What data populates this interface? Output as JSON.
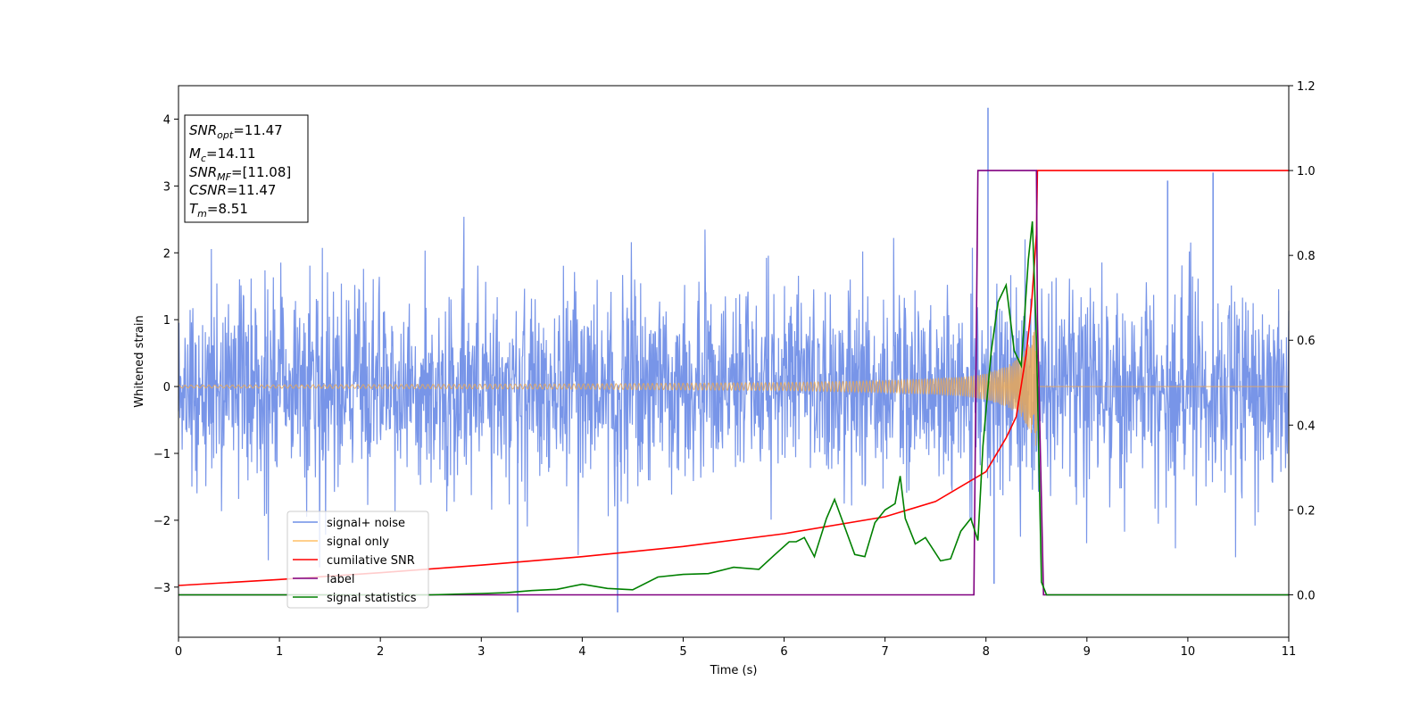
{
  "chart_data": {
    "type": "line",
    "xlabel": "Time (s)",
    "ylabel": "Whitened strain",
    "xlim": [
      0,
      11
    ],
    "ylim_left": [
      -3.75,
      4.5
    ],
    "ylim_right": [
      -0.1,
      1.2
    ],
    "x_ticks": [
      "0",
      "1",
      "2",
      "3",
      "4",
      "5",
      "6",
      "7",
      "8",
      "9",
      "10",
      "11"
    ],
    "y_ticks_left": [
      "−3",
      "−2",
      "−1",
      "0",
      "1",
      "2",
      "3",
      "4"
    ],
    "y_ticks_right": [
      "0.0",
      "0.2",
      "0.4",
      "0.6",
      "0.8",
      "1.0",
      "1.2"
    ],
    "info_box": [
      {
        "main": "SNR",
        "sub": "opt",
        "rest": "=11.47"
      },
      {
        "main": "M",
        "sub": "c",
        "rest": "=14.11"
      },
      {
        "main": "SNR",
        "sub": "MF",
        "rest": "=[11.08]"
      },
      {
        "main": "CSNR",
        "sub": "",
        "rest": "=11.47"
      },
      {
        "main": "T",
        "sub": "m",
        "rest": "=8.51"
      }
    ],
    "legend": {
      "placement": "lower-left",
      "entries": [
        {
          "label": "signal+ noise",
          "color": "#6f8fe6"
        },
        {
          "label": "signal only",
          "color": "#ffbf66"
        },
        {
          "label": "cumilative SNR",
          "color": "#ff0000"
        },
        {
          "label": "label",
          "color": "#800080"
        },
        {
          "label": "signal statistics",
          "color": "#008000"
        }
      ]
    },
    "series": [
      {
        "name": "signal+ noise",
        "axis": "left",
        "color": "#7895e8",
        "noise_std": 0.75,
        "notable_peaks": [
          {
            "x": 8.02,
            "y": 4.17
          },
          {
            "x": 3.36,
            "y": -3.38
          },
          {
            "x": 4.35,
            "y": -3.38
          },
          {
            "x": 8.08,
            "y": -2.95
          },
          {
            "x": 10.25,
            "y": 3.2
          },
          {
            "x": 9.8,
            "y": 3.08
          }
        ]
      },
      {
        "name": "signal only",
        "axis": "left",
        "color": "#e8a858",
        "t_merge": 8.51,
        "envelope": [
          [
            0,
            0.02
          ],
          [
            2,
            0.03
          ],
          [
            4,
            0.04
          ],
          [
            6,
            0.06
          ],
          [
            7,
            0.09
          ],
          [
            7.5,
            0.12
          ],
          [
            7.8,
            0.15
          ],
          [
            8.0,
            0.2
          ],
          [
            8.2,
            0.3
          ],
          [
            8.35,
            0.45
          ],
          [
            8.45,
            0.7
          ],
          [
            8.5,
            0.95
          ],
          [
            8.51,
            1.0
          ],
          [
            8.52,
            0
          ]
        ]
      },
      {
        "name": "cumilative SNR",
        "axis": "right",
        "color": "#ff0000",
        "points": [
          [
            0,
            0.022
          ],
          [
            1,
            0.036
          ],
          [
            2,
            0.052
          ],
          [
            3,
            0.07
          ],
          [
            4,
            0.09
          ],
          [
            5,
            0.114
          ],
          [
            6,
            0.144
          ],
          [
            7,
            0.184
          ],
          [
            7.5,
            0.22
          ],
          [
            8.0,
            0.29
          ],
          [
            8.2,
            0.37
          ],
          [
            8.3,
            0.42
          ],
          [
            8.4,
            0.57
          ],
          [
            8.45,
            0.68
          ],
          [
            8.5,
            0.85
          ],
          [
            8.51,
            1.0
          ],
          [
            11,
            1.0
          ]
        ]
      },
      {
        "name": "label",
        "axis": "right",
        "color": "#800080",
        "points": [
          [
            0,
            0.0
          ],
          [
            7.88,
            0.0
          ],
          [
            7.92,
            1.0
          ],
          [
            8.5,
            1.0
          ],
          [
            8.51,
            0.65
          ],
          [
            8.57,
            0.0
          ],
          [
            11,
            0.0
          ]
        ]
      },
      {
        "name": "signal statistics",
        "axis": "right",
        "color": "#008000",
        "points": [
          [
            0,
            0.0
          ],
          [
            2.5,
            0.0
          ],
          [
            3.0,
            0.003
          ],
          [
            3.25,
            0.005
          ],
          [
            3.5,
            0.01
          ],
          [
            3.75,
            0.013
          ],
          [
            4.0,
            0.025
          ],
          [
            4.25,
            0.015
          ],
          [
            4.5,
            0.012
          ],
          [
            4.75,
            0.042
          ],
          [
            5.0,
            0.048
          ],
          [
            5.25,
            0.05
          ],
          [
            5.5,
            0.065
          ],
          [
            5.75,
            0.06
          ],
          [
            5.9,
            0.093
          ],
          [
            6.05,
            0.125
          ],
          [
            6.12,
            0.125
          ],
          [
            6.2,
            0.135
          ],
          [
            6.3,
            0.09
          ],
          [
            6.42,
            0.18
          ],
          [
            6.5,
            0.225
          ],
          [
            6.6,
            0.16
          ],
          [
            6.7,
            0.095
          ],
          [
            6.8,
            0.09
          ],
          [
            6.9,
            0.17
          ],
          [
            7.0,
            0.2
          ],
          [
            7.1,
            0.215
          ],
          [
            7.15,
            0.28
          ],
          [
            7.2,
            0.18
          ],
          [
            7.3,
            0.12
          ],
          [
            7.4,
            0.135
          ],
          [
            7.55,
            0.08
          ],
          [
            7.65,
            0.085
          ],
          [
            7.75,
            0.15
          ],
          [
            7.85,
            0.18
          ],
          [
            7.92,
            0.128
          ],
          [
            7.97,
            0.35
          ],
          [
            8.05,
            0.57
          ],
          [
            8.12,
            0.69
          ],
          [
            8.2,
            0.73
          ],
          [
            8.28,
            0.575
          ],
          [
            8.35,
            0.54
          ],
          [
            8.42,
            0.79
          ],
          [
            8.46,
            0.88
          ],
          [
            8.5,
            0.6
          ],
          [
            8.55,
            0.03
          ],
          [
            8.6,
            0.0
          ],
          [
            11,
            0.0
          ]
        ]
      }
    ]
  }
}
